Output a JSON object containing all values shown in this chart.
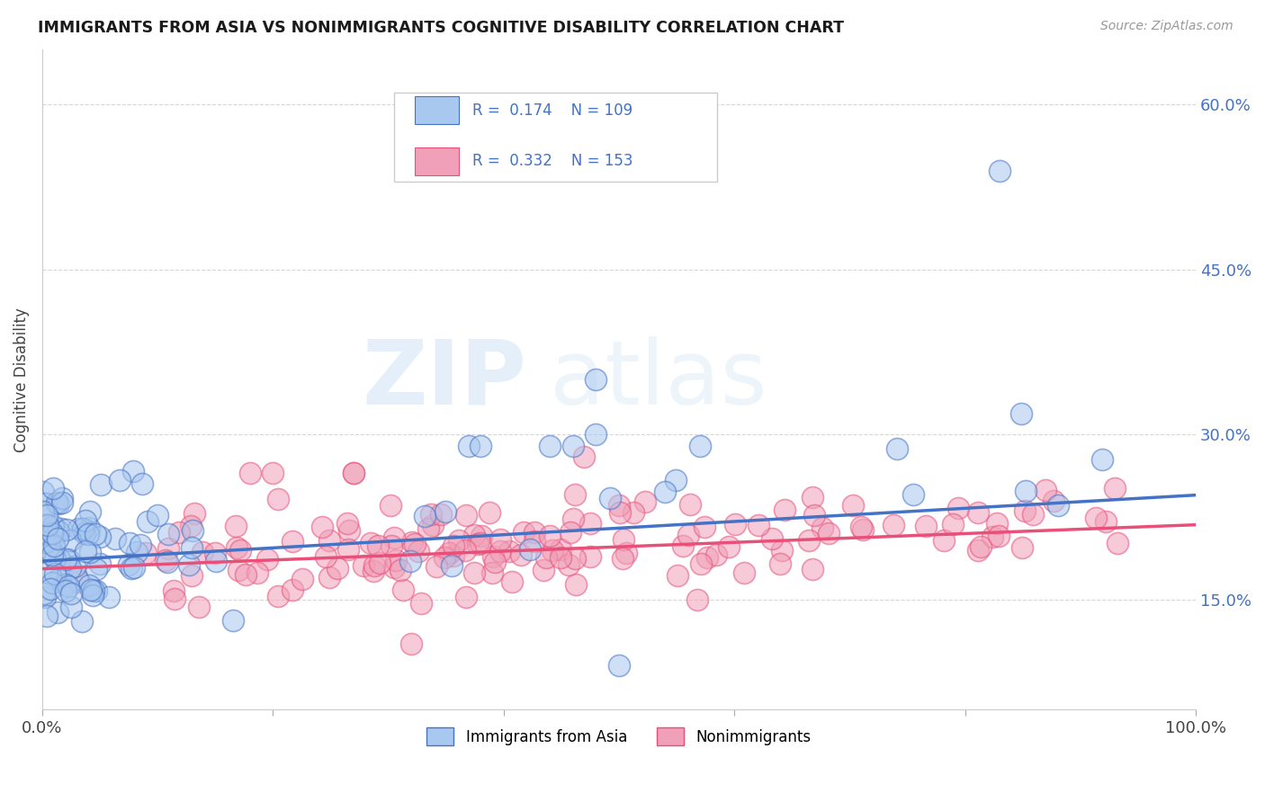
{
  "title": "IMMIGRANTS FROM ASIA VS NONIMMIGRANTS COGNITIVE DISABILITY CORRELATION CHART",
  "source": "Source: ZipAtlas.com",
  "ylabel": "Cognitive Disability",
  "R1": 0.174,
  "N1": 109,
  "R2": 0.332,
  "N2": 153,
  "color_blue": "#a8c8f0",
  "color_pink": "#f0a0b8",
  "line_color_blue": "#4472c4",
  "line_color_pink": "#e8507a",
  "background_color": "#ffffff",
  "watermark_ZIP": "ZIP",
  "watermark_atlas": "atlas",
  "legend_label1": "Immigrants from Asia",
  "legend_label2": "Nonimmigrants",
  "ytick_vals": [
    0.15,
    0.3,
    0.45,
    0.6
  ],
  "xlim": [
    0.0,
    1.0
  ],
  "ylim": [
    0.05,
    0.65
  ],
  "blue_trend_start": 0.185,
  "blue_trend_end": 0.245,
  "pink_trend_start": 0.178,
  "pink_trend_end": 0.218
}
